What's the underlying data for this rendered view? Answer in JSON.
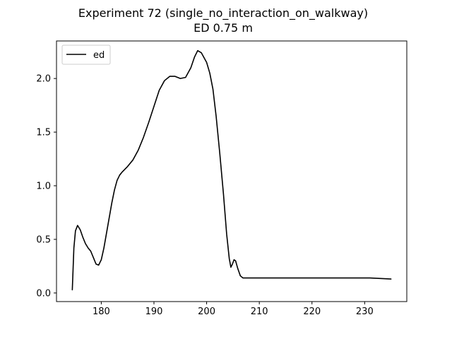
{
  "chart_data": {
    "type": "line",
    "title": "Experiment 72 (single_no_interaction_on_walkway)",
    "subtitle": "ED 0.75 m",
    "xlabel": "",
    "ylabel": "",
    "xlim": [
      171.5,
      238.0
    ],
    "ylim": [
      -0.08,
      2.35
    ],
    "x_ticks": [
      180,
      190,
      200,
      210,
      220,
      230
    ],
    "y_ticks": [
      0.0,
      0.5,
      1.0,
      1.5,
      2.0
    ],
    "x_tick_labels": [
      "180",
      "190",
      "200",
      "210",
      "220",
      "230"
    ],
    "y_tick_labels": [
      "0.0",
      "0.5",
      "1.0",
      "1.5",
      "2.0"
    ],
    "grid": false,
    "legend_position": "top-left",
    "series": [
      {
        "name": "ed",
        "color": "#000000",
        "points": [
          [
            174.5,
            0.03
          ],
          [
            174.8,
            0.42
          ],
          [
            175.1,
            0.58
          ],
          [
            175.5,
            0.63
          ],
          [
            176.0,
            0.59
          ],
          [
            176.5,
            0.52
          ],
          [
            177.0,
            0.46
          ],
          [
            177.5,
            0.42
          ],
          [
            178.0,
            0.39
          ],
          [
            178.5,
            0.33
          ],
          [
            179.0,
            0.27
          ],
          [
            179.5,
            0.26
          ],
          [
            180.0,
            0.31
          ],
          [
            180.5,
            0.42
          ],
          [
            181.0,
            0.56
          ],
          [
            181.5,
            0.7
          ],
          [
            182.0,
            0.84
          ],
          [
            182.5,
            0.96
          ],
          [
            183.0,
            1.05
          ],
          [
            183.5,
            1.1
          ],
          [
            184.0,
            1.13
          ],
          [
            185.0,
            1.18
          ],
          [
            186.0,
            1.24
          ],
          [
            187.0,
            1.33
          ],
          [
            188.0,
            1.45
          ],
          [
            189.0,
            1.59
          ],
          [
            190.0,
            1.74
          ],
          [
            191.0,
            1.89
          ],
          [
            192.0,
            1.98
          ],
          [
            193.0,
            2.02
          ],
          [
            194.0,
            2.02
          ],
          [
            195.0,
            2.0
          ],
          [
            196.0,
            2.01
          ],
          [
            197.0,
            2.1
          ],
          [
            197.7,
            2.2
          ],
          [
            198.3,
            2.26
          ],
          [
            199.0,
            2.24
          ],
          [
            200.0,
            2.15
          ],
          [
            200.6,
            2.05
          ],
          [
            201.2,
            1.9
          ],
          [
            201.8,
            1.65
          ],
          [
            202.5,
            1.3
          ],
          [
            203.2,
            0.92
          ],
          [
            203.8,
            0.55
          ],
          [
            204.3,
            0.32
          ],
          [
            204.6,
            0.24
          ],
          [
            204.9,
            0.27
          ],
          [
            205.2,
            0.31
          ],
          [
            205.5,
            0.3
          ],
          [
            205.9,
            0.23
          ],
          [
            206.4,
            0.16
          ],
          [
            206.9,
            0.14
          ],
          [
            210.0,
            0.14
          ],
          [
            220.0,
            0.14
          ],
          [
            231.0,
            0.14
          ],
          [
            235.0,
            0.13
          ]
        ]
      }
    ]
  }
}
